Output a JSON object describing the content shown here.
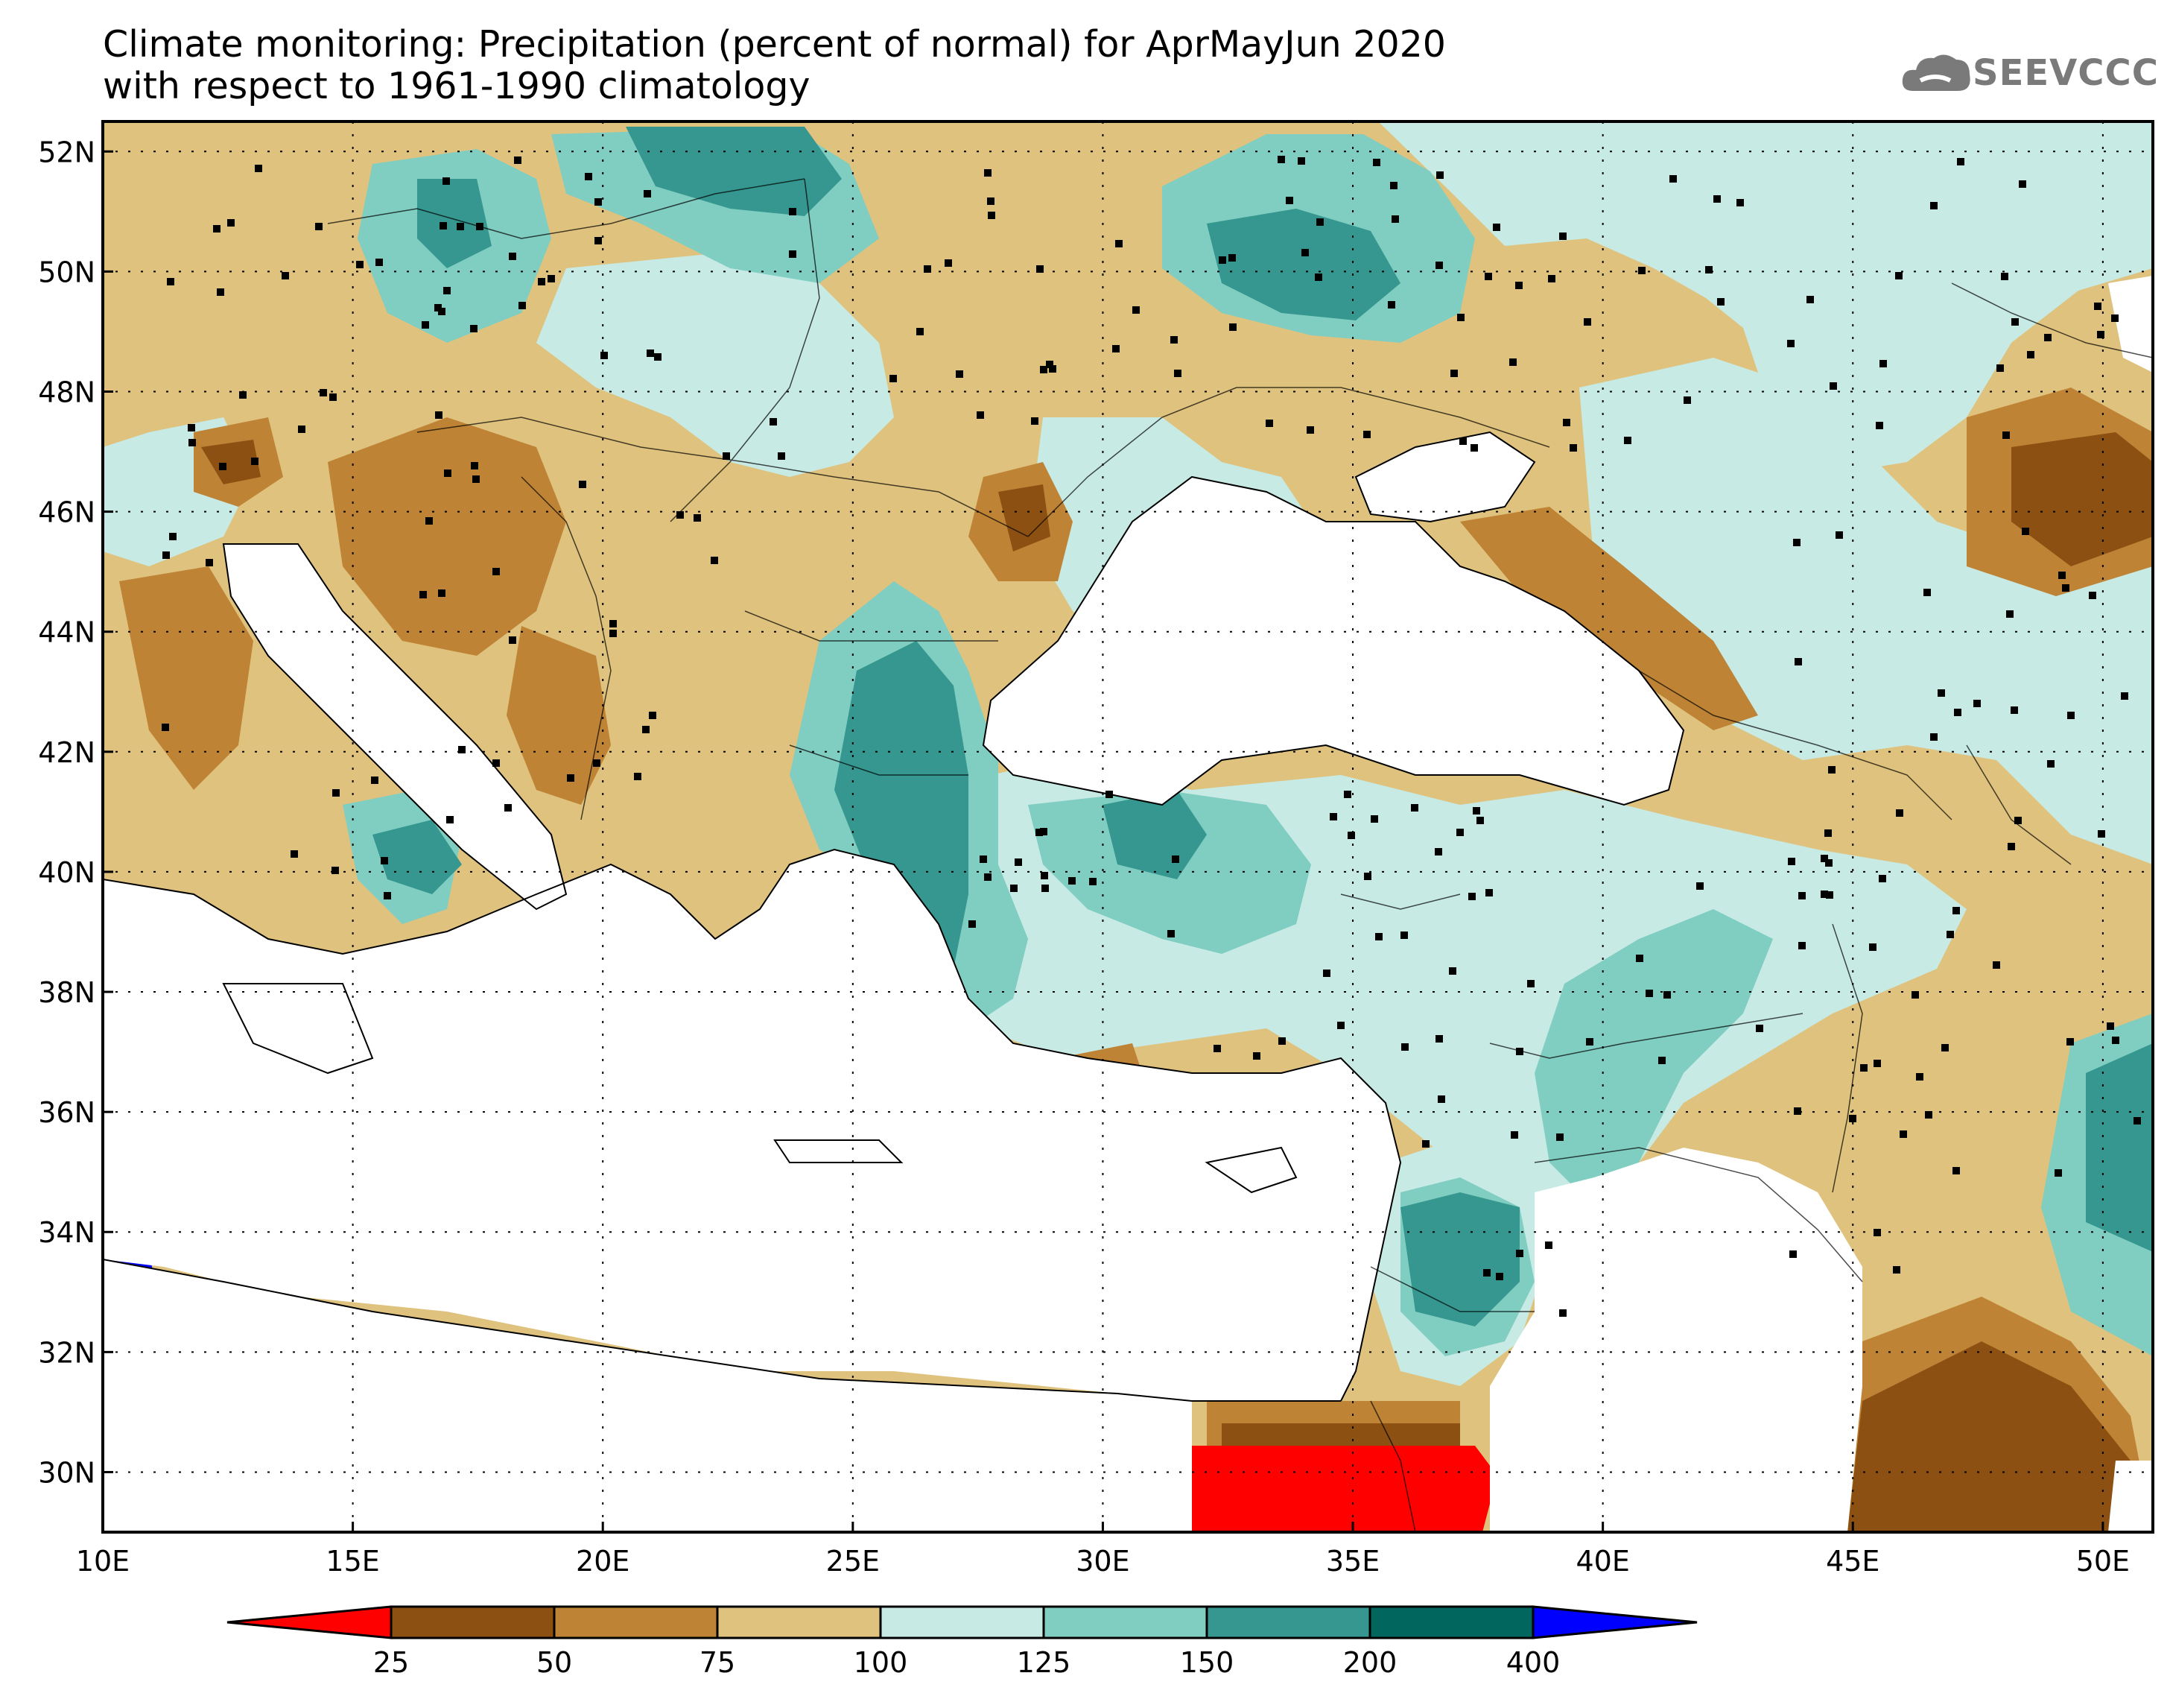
{
  "title": {
    "line1": "Climate monitoring: Precipitation (percent of normal) for AprMayJun 2020",
    "line2": "with respect to 1961-1990 climatology"
  },
  "logo": {
    "text": "SEEVCCC",
    "icon": "cloud-icon"
  },
  "map": {
    "lon_range": [
      10,
      51
    ],
    "lat_range": [
      29,
      52.5
    ],
    "lon_ticks": [
      "10E",
      "15E",
      "20E",
      "25E",
      "30E",
      "35E",
      "40E",
      "45E",
      "50E"
    ],
    "lat_ticks": [
      "30N",
      "32N",
      "34N",
      "36N",
      "38N",
      "40N",
      "42N",
      "44N",
      "46N",
      "48N",
      "50N",
      "52N"
    ],
    "gridlines": "dotted"
  },
  "colorbar": {
    "boundaries": [
      "25",
      "50",
      "75",
      "100",
      "125",
      "150",
      "200",
      "400"
    ],
    "colors": [
      "#ff0000",
      "#8b5012",
      "#be8335",
      "#dfc27d",
      "#c7eae5",
      "#80cdc1",
      "#35978f",
      "#01665e",
      "#0000ff"
    ]
  },
  "colors": {
    "c25": "#ff0000",
    "c50": "#8b5012",
    "c75": "#be8335",
    "c100": "#dfc27d",
    "c125": "#c7eae5",
    "c150": "#80cdc1",
    "c200": "#35978f",
    "c400": "#01665e",
    "over": "#0000ff"
  }
}
